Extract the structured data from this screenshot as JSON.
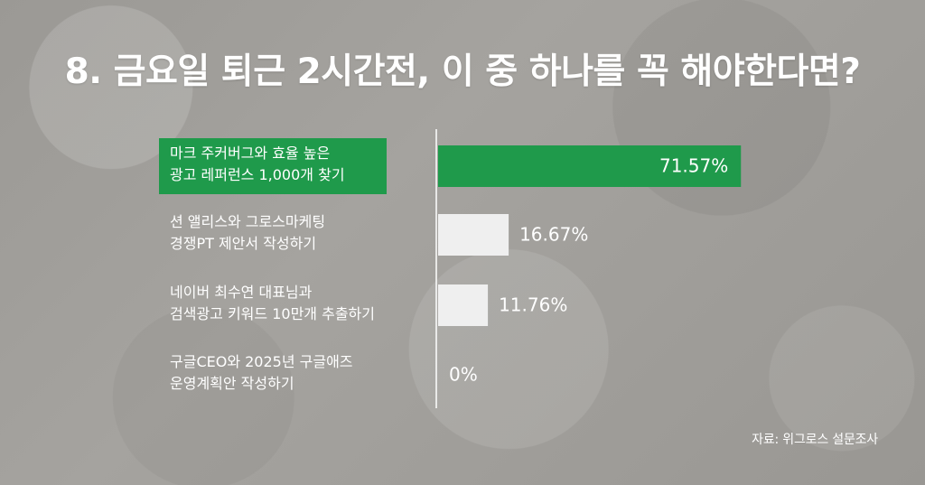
{
  "title": "8. 금요일 퇴근 2시간전, 이 중 하나를 꼭 해야한다면?",
  "source": "자료: 위그로스 설문조사",
  "chart_data": {
    "type": "bar",
    "orientation": "horizontal",
    "categories": [
      [
        "마크 주커버그와 효율 높은",
        "광고 레퍼런스 1,000개 찾기"
      ],
      [
        "션 앨리스와 그로스마케팅",
        "경쟁PT 제안서 작성하기"
      ],
      [
        "네이버 최수연 대표님과",
        "검색광고 키워드 10만개 추출하기"
      ],
      [
        "구글CEO와 2025년 구글애즈",
        "운영계획안 작성하기"
      ]
    ],
    "values": [
      71.57,
      16.67,
      11.76,
      0
    ],
    "value_labels": [
      "71.57%",
      "16.67%",
      "11.76%",
      "0%"
    ],
    "xlim": [
      0,
      76
    ],
    "highlight_index": 0,
    "colors": {
      "highlight": "#1f9a4b",
      "bar": "#efefef",
      "axis": "#ffffff",
      "text": "#ffffff"
    }
  }
}
